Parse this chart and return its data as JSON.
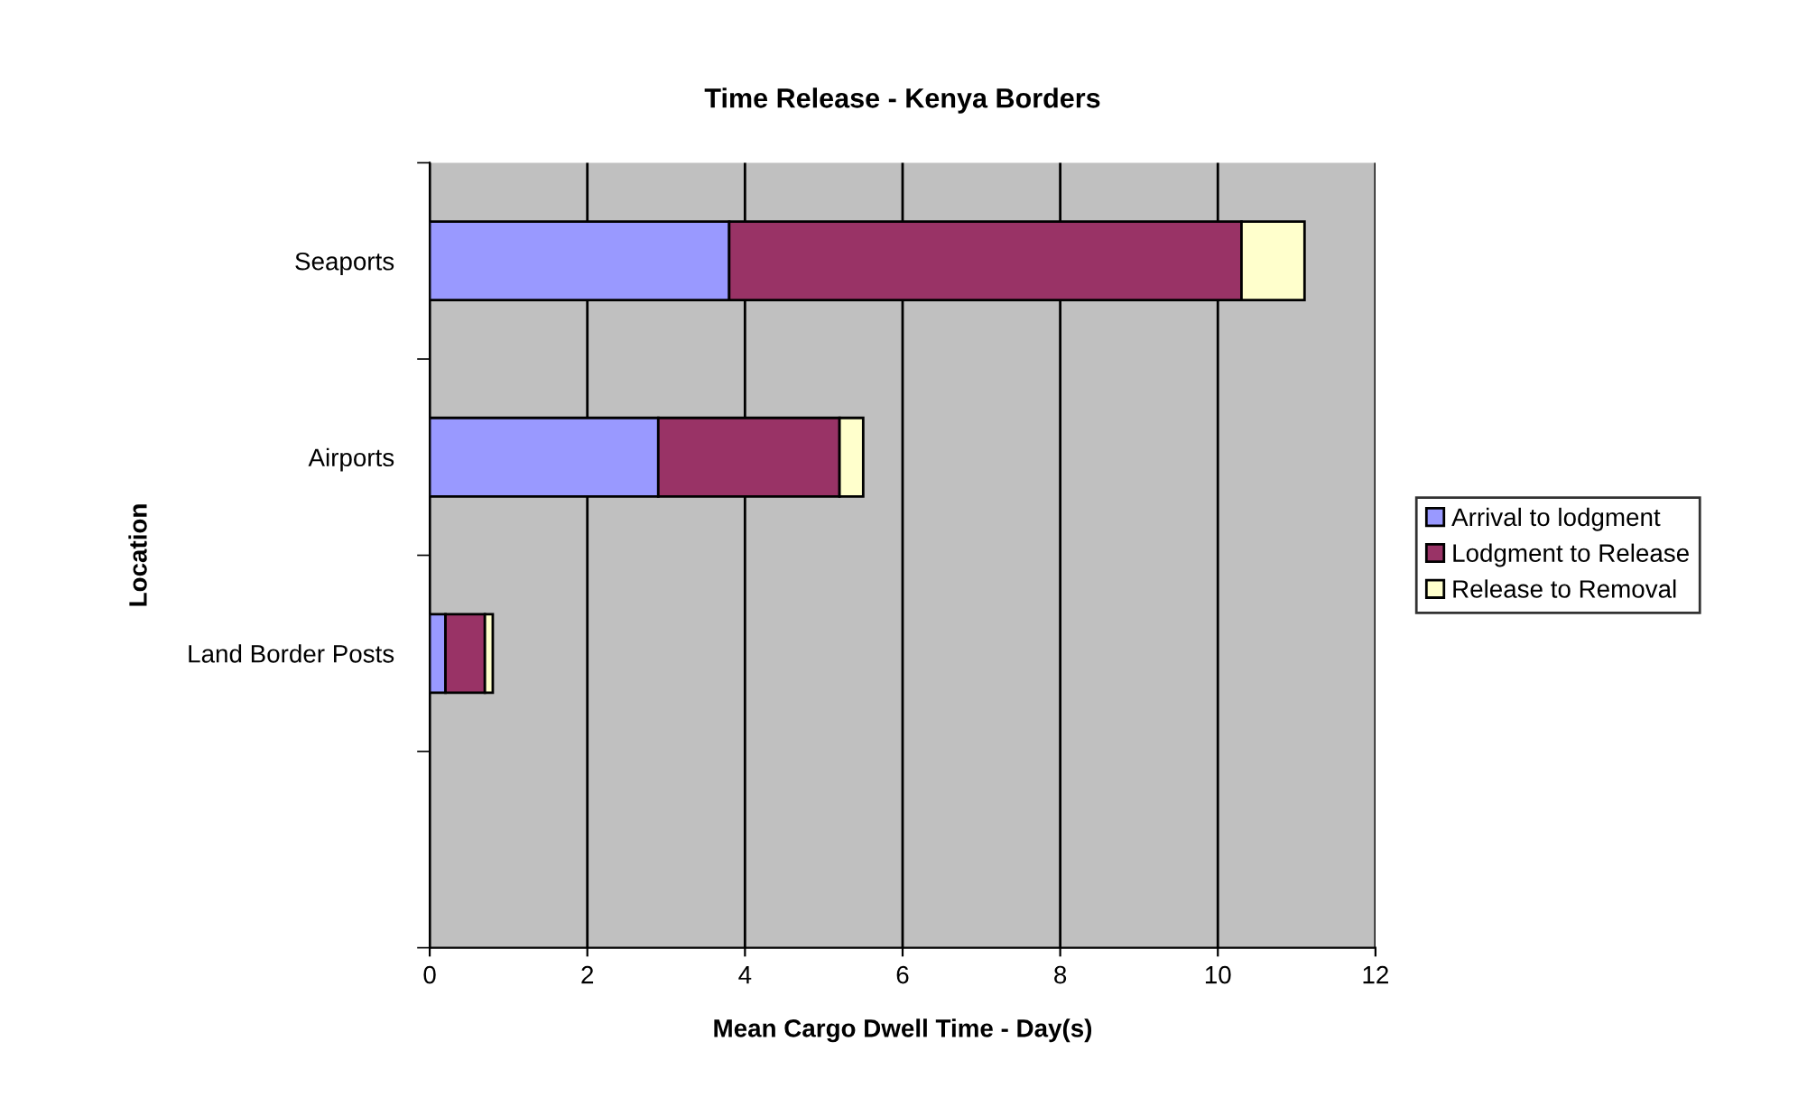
{
  "chart_data": {
    "type": "bar",
    "orientation": "horizontal",
    "stacked": true,
    "title": "Time Release - Kenya Borders",
    "xlabel": "Mean Cargo Dwell Time - Day(s)",
    "ylabel": "Location",
    "categories": [
      "Seaports",
      "Airports",
      "Land Border Posts",
      null
    ],
    "series": [
      {
        "name": "Arrival to lodgment",
        "color": "#9999ff",
        "values": [
          3.8,
          2.9,
          0.2,
          null
        ]
      },
      {
        "name": "Lodgment to Release",
        "color": "#993366",
        "values": [
          6.5,
          2.3,
          0.5,
          null
        ]
      },
      {
        "name": "Release to Removal",
        "color": "#ffffcc",
        "values": [
          0.8,
          0.3,
          0.1,
          null
        ]
      }
    ],
    "xlim": [
      0,
      12
    ],
    "xticks": [
      0,
      2,
      4,
      6,
      8,
      10,
      12
    ],
    "grid": "x",
    "legend": "right"
  }
}
